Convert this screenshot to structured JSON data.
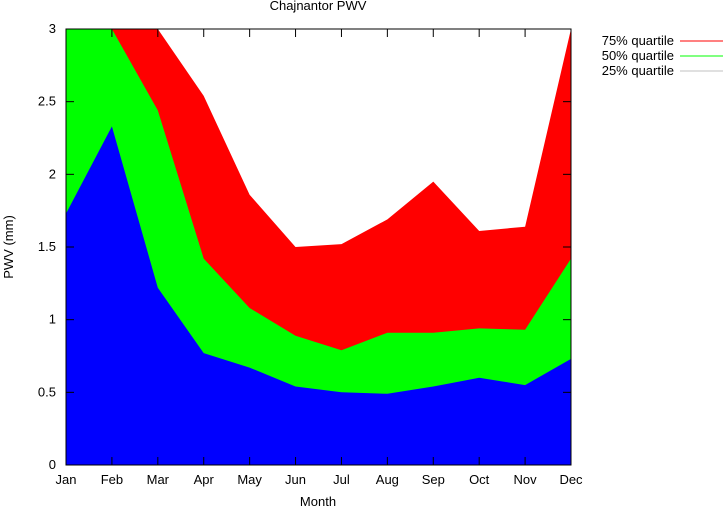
{
  "chart_data": {
    "type": "area",
    "title": "Chajnantor PWV",
    "xlabel": "Month",
    "ylabel": "PWV (mm)",
    "categories": [
      "Jan",
      "Feb",
      "Mar",
      "Apr",
      "May",
      "Jun",
      "Jul",
      "Aug",
      "Sep",
      "Oct",
      "Nov",
      "Dec"
    ],
    "yticks": [
      "0",
      "0.5",
      "1",
      "1.5",
      "2",
      "2.5",
      "3"
    ],
    "ylim": [
      0,
      3
    ],
    "grid": false,
    "legend_position": "outside-top-right",
    "series": [
      {
        "name": "75% quartile",
        "color": "#ff0000",
        "values": [
          3.0,
          3.0,
          3.0,
          2.54,
          1.86,
          1.5,
          1.52,
          1.69,
          1.95,
          1.61,
          1.64,
          3.0
        ]
      },
      {
        "name": "50% quartile",
        "color": "#00ff00",
        "values": [
          3.0,
          3.0,
          2.44,
          1.42,
          1.08,
          0.89,
          0.79,
          0.91,
          0.91,
          0.94,
          0.93,
          1.42
        ]
      },
      {
        "name": "25% quartile",
        "color": "#0000ff",
        "legend_line_color": "#c0c0c0",
        "values": [
          1.73,
          2.33,
          1.22,
          0.77,
          0.67,
          0.54,
          0.5,
          0.49,
          0.54,
          0.6,
          0.55,
          0.73
        ]
      }
    ]
  }
}
